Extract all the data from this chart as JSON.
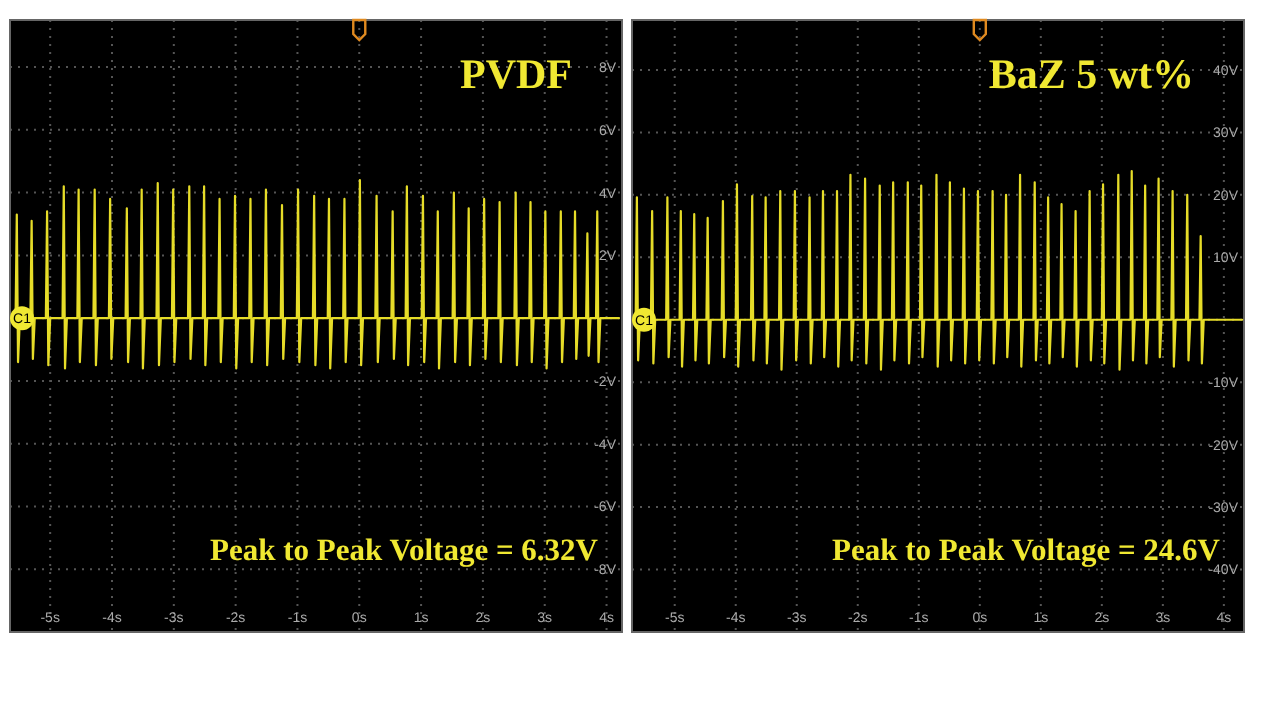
{
  "chart_data": [
    {
      "type": "line",
      "title": "PVDF",
      "xlim": [
        -5.65,
        4.25
      ],
      "ylim": [
        -10,
        9.5
      ],
      "xticks": [
        {
          "value": -5,
          "label": "-5s"
        },
        {
          "value": -4,
          "label": "-4s"
        },
        {
          "value": -3,
          "label": "-3s"
        },
        {
          "value": -2,
          "label": "-2s"
        },
        {
          "value": -1,
          "label": "-1s"
        },
        {
          "value": 0,
          "label": "0s"
        },
        {
          "value": 1,
          "label": "1s"
        },
        {
          "value": 2,
          "label": "2s"
        },
        {
          "value": 3,
          "label": "3s"
        },
        {
          "value": 4,
          "label": "4s"
        }
      ],
      "yticks": [
        {
          "value": 8,
          "label": "8V"
        },
        {
          "value": 6,
          "label": "6V"
        },
        {
          "value": 4,
          "label": "4V"
        },
        {
          "value": 2,
          "label": "2V"
        },
        {
          "value": 0,
          "label": null
        },
        {
          "value": -2,
          "label": "-2V"
        },
        {
          "value": -4,
          "label": "-4V"
        },
        {
          "value": -6,
          "label": "-6V"
        },
        {
          "value": -8,
          "label": "-8V"
        }
      ],
      "grid": true,
      "marker": "none",
      "line_style": "solid",
      "annotations": [
        "Peak to Peak Voltage = 6.32V",
        {
          "text": "C1",
          "x": -5.65,
          "y": 0
        }
      ],
      "series": [
        {
          "color": "#e6dc28",
          "x": [
            -5.62,
            -5.56,
            -5.54,
            -5.52,
            -5.49,
            -5.32,
            -5.3,
            -5.28,
            -5.25,
            -5.07,
            -5.05,
            -5.03,
            -5.0,
            -4.8,
            -4.78,
            -4.76,
            -4.73,
            -4.56,
            -4.54,
            -4.52,
            -4.49,
            -4.3,
            -4.28,
            -4.26,
            -4.23,
            -4.05,
            -4.03,
            -4.01,
            -3.98,
            -3.78,
            -3.76,
            -3.74,
            -3.71,
            -3.54,
            -3.52,
            -3.5,
            -3.47,
            -3.28,
            -3.26,
            -3.24,
            -3.21,
            -3.03,
            -3.01,
            -2.99,
            -2.96,
            -2.77,
            -2.75,
            -2.73,
            -2.7,
            -2.53,
            -2.51,
            -2.49,
            -2.46,
            -2.28,
            -2.26,
            -2.24,
            -2.21,
            -2.03,
            -2.01,
            -1.99,
            -1.96,
            -1.78,
            -1.76,
            -1.74,
            -1.71,
            -1.53,
            -1.51,
            -1.49,
            -1.46,
            -1.27,
            -1.25,
            -1.23,
            -1.2,
            -1.01,
            -0.99,
            -0.97,
            -0.94,
            -0.75,
            -0.73,
            -0.71,
            -0.68,
            -0.51,
            -0.49,
            -0.47,
            -0.44,
            -0.26,
            -0.24,
            -0.22,
            -0.19,
            -0.01,
            0.01,
            0.03,
            0.06,
            0.26,
            0.28,
            0.3,
            0.33,
            0.52,
            0.54,
            0.56,
            0.59,
            0.75,
            0.77,
            0.79,
            0.82,
            1.01,
            1.03,
            1.05,
            1.08,
            1.25,
            1.27,
            1.29,
            1.32,
            1.51,
            1.53,
            1.55,
            1.58,
            1.75,
            1.77,
            1.79,
            1.82,
            2.0,
            2.02,
            2.04,
            2.07,
            2.25,
            2.27,
            2.29,
            2.32,
            2.51,
            2.53,
            2.55,
            2.58,
            2.75,
            2.77,
            2.79,
            2.82,
            2.99,
            3.01,
            3.03,
            3.06,
            3.24,
            3.26,
            3.28,
            3.31,
            3.47,
            3.49,
            3.51,
            3.54,
            3.67,
            3.69,
            3.71,
            3.74,
            3.83,
            3.85,
            3.87,
            3.9,
            4.2
          ],
          "values": [
            0,
            0,
            3.3,
            -1.4,
            0,
            0,
            3.1,
            -1.3,
            0,
            0,
            3.4,
            -1.5,
            0,
            0,
            4.2,
            -1.6,
            0,
            0,
            4.1,
            -1.4,
            0,
            0,
            4.1,
            -1.5,
            0,
            0,
            3.8,
            -1.3,
            0,
            0,
            3.5,
            -1.4,
            0,
            0,
            4.1,
            -1.6,
            0,
            0,
            4.3,
            -1.5,
            0,
            0,
            4.1,
            -1.4,
            0,
            0,
            4.2,
            -1.3,
            0,
            0,
            4.2,
            -1.5,
            0,
            0,
            3.8,
            -1.4,
            0,
            0,
            3.9,
            -1.6,
            0,
            0,
            3.8,
            -1.4,
            0,
            0,
            4.1,
            -1.5,
            0,
            0,
            3.6,
            -1.3,
            0,
            0,
            4.1,
            -1.4,
            0,
            0,
            3.9,
            -1.5,
            0,
            0,
            3.8,
            -1.6,
            0,
            0,
            3.8,
            -1.4,
            0,
            0,
            4.4,
            -1.5,
            0,
            0,
            3.9,
            -1.4,
            0,
            0,
            3.4,
            -1.3,
            0,
            0,
            4.2,
            -1.5,
            0,
            0,
            3.9,
            -1.4,
            0,
            0,
            3.4,
            -1.6,
            0,
            0,
            4.0,
            -1.4,
            0,
            0,
            3.5,
            -1.5,
            0,
            0,
            3.8,
            -1.3,
            0,
            0,
            3.7,
            -1.4,
            0,
            0,
            4.0,
            -1.5,
            0,
            0,
            3.7,
            -1.4,
            0,
            0,
            3.4,
            -1.6,
            0,
            0,
            3.4,
            -1.4,
            0,
            0,
            3.4,
            -1.3,
            0,
            0,
            2.7,
            -1.2,
            0,
            0,
            3.4,
            -1.4,
            0,
            0
          ]
        }
      ]
    },
    {
      "type": "line",
      "title": "BaZ 5 wt%",
      "xlim": [
        -5.7,
        4.33
      ],
      "ylim": [
        -50,
        48
      ],
      "xticks": [
        {
          "value": -5,
          "label": "-5s"
        },
        {
          "value": -4,
          "label": "-4s"
        },
        {
          "value": -3,
          "label": "-3s"
        },
        {
          "value": -2,
          "label": "-2s"
        },
        {
          "value": -1,
          "label": "-1s"
        },
        {
          "value": 0,
          "label": "0s"
        },
        {
          "value": 1,
          "label": "1s"
        },
        {
          "value": 2,
          "label": "2s"
        },
        {
          "value": 3,
          "label": "3s"
        },
        {
          "value": 4,
          "label": "4s"
        }
      ],
      "yticks": [
        {
          "value": 40,
          "label": "40V"
        },
        {
          "value": 30,
          "label": "30V"
        },
        {
          "value": 20,
          "label": "20V"
        },
        {
          "value": 10,
          "label": "10V"
        },
        {
          "value": 0,
          "label": null
        },
        {
          "value": -10,
          "label": "-10V"
        },
        {
          "value": -20,
          "label": "-20V"
        },
        {
          "value": -30,
          "label": "-30V"
        },
        {
          "value": -40,
          "label": "-40V"
        }
      ],
      "grid": true,
      "marker": "none",
      "line_style": "solid",
      "annotations": [
        "Peak to Peak Voltage = 24.6V",
        {
          "text": "C1",
          "x": -5.7,
          "y": 0
        }
      ],
      "series": [
        {
          "color": "#e6dc28",
          "x": [
            -5.68,
            -5.64,
            -5.62,
            -5.6,
            -5.57,
            -5.39,
            -5.37,
            -5.35,
            -5.32,
            -5.14,
            -5.12,
            -5.1,
            -5.07,
            -4.92,
            -4.9,
            -4.88,
            -4.85,
            -4.7,
            -4.68,
            -4.66,
            -4.63,
            -4.48,
            -4.46,
            -4.44,
            -4.41,
            -4.23,
            -4.21,
            -4.19,
            -4.16,
            -4.0,
            -3.98,
            -3.96,
            -3.93,
            -3.75,
            -3.73,
            -3.71,
            -3.68,
            -3.53,
            -3.51,
            -3.49,
            -3.46,
            -3.29,
            -3.27,
            -3.25,
            -3.22,
            -3.05,
            -3.03,
            -3.01,
            -2.98,
            -2.81,
            -2.79,
            -2.77,
            -2.74,
            -2.59,
            -2.57,
            -2.55,
            -2.52,
            -2.36,
            -2.34,
            -2.32,
            -2.29,
            -2.14,
            -2.12,
            -2.1,
            -2.07,
            -1.9,
            -1.88,
            -1.86,
            -1.83,
            -1.66,
            -1.64,
            -1.62,
            -1.59,
            -1.44,
            -1.42,
            -1.4,
            -1.37,
            -1.2,
            -1.18,
            -1.16,
            -1.13,
            -0.98,
            -0.96,
            -0.94,
            -0.91,
            -0.73,
            -0.71,
            -0.69,
            -0.66,
            -0.51,
            -0.49,
            -0.47,
            -0.44,
            -0.28,
            -0.26,
            -0.24,
            -0.21,
            -0.05,
            -0.03,
            -0.01,
            0.02,
            0.19,
            0.21,
            0.23,
            0.26,
            0.41,
            0.43,
            0.45,
            0.48,
            0.64,
            0.66,
            0.68,
            0.71,
            0.88,
            0.9,
            0.92,
            0.95,
            1.1,
            1.12,
            1.14,
            1.17,
            1.32,
            1.34,
            1.36,
            1.39,
            1.55,
            1.57,
            1.59,
            1.62,
            1.78,
            1.8,
            1.82,
            1.85,
            2.0,
            2.02,
            2.04,
            2.07,
            2.25,
            2.27,
            2.29,
            2.32,
            2.47,
            2.49,
            2.51,
            2.54,
            2.69,
            2.71,
            2.73,
            2.76,
            2.91,
            2.93,
            2.95,
            2.98,
            3.14,
            3.16,
            3.18,
            3.21,
            3.38,
            3.4,
            3.42,
            3.45,
            3.6,
            3.62,
            3.64,
            3.67,
            4.3
          ],
          "values": [
            0,
            0,
            19.6,
            -6.5,
            0,
            0,
            17.4,
            -7,
            0,
            0,
            19.6,
            -6,
            0,
            0,
            17.4,
            -7.5,
            0,
            0,
            16.9,
            -6.5,
            0,
            0,
            16.3,
            -7,
            0,
            0,
            19,
            -6,
            0,
            0,
            21.7,
            -7.5,
            0,
            0,
            19.8,
            -6.5,
            0,
            0,
            19.6,
            -7,
            0,
            0,
            20.6,
            -8,
            0,
            0,
            20.6,
            -6.5,
            0,
            0,
            19.6,
            -7,
            0,
            0,
            20.6,
            -6,
            0,
            0,
            20.6,
            -7.5,
            0,
            0,
            23.2,
            -6.5,
            0,
            0,
            22.6,
            -7,
            0,
            0,
            21.5,
            -8,
            0,
            0,
            22,
            -6.5,
            0,
            0,
            22,
            -7,
            0,
            0,
            21.5,
            -6,
            0,
            0,
            23.2,
            -7.5,
            0,
            0,
            22,
            -6.5,
            0,
            0,
            21,
            -7,
            0,
            0,
            20.6,
            -6.5,
            0,
            0,
            20.6,
            -7,
            0,
            0,
            20,
            -6,
            0,
            0,
            23.2,
            -7.5,
            0,
            0,
            22,
            -6.5,
            0,
            0,
            19.6,
            -7,
            0,
            0,
            18.5,
            -6,
            0,
            0,
            17.4,
            -7.5,
            0,
            0,
            20.6,
            -6.5,
            0,
            0,
            21.7,
            -7,
            0,
            0,
            23.2,
            -8,
            0,
            0,
            23.8,
            -6.5,
            0,
            0,
            21.5,
            -7,
            0,
            0,
            22.6,
            -6,
            0,
            0,
            20.6,
            -7.5,
            0,
            0,
            20,
            -6.5,
            0,
            0,
            13.4,
            -7,
            0,
            0
          ]
        }
      ]
    }
  ]
}
